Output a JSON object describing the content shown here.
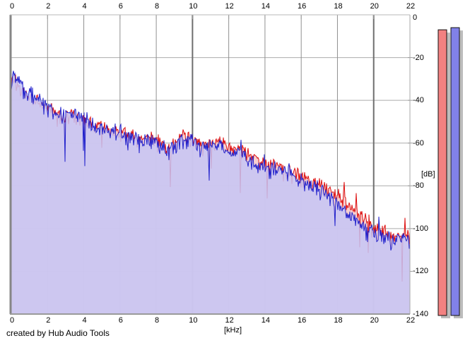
{
  "credit": "created by Hub Audio Tools",
  "colors": {
    "background": "#ffffff",
    "plot_background": "#ffffff",
    "grid_vertical": "#909090",
    "grid_vertical_major": "#6e6e6e",
    "grid_horizontal": "#ababab",
    "border_left": "#868686",
    "border_top": "#b8b8b8",
    "border_right": "#a8a8a8",
    "border_bottom": "#9a9a9a",
    "tick_color": "#9a9a9a",
    "shadow": "#bcbcbc",
    "text": "#000000"
  },
  "chart_data": {
    "type": "line",
    "title": "",
    "xlabel": "[kHz]",
    "ylabel": "[dB]",
    "xlim": [
      0,
      22
    ],
    "ylim": [
      -140,
      0
    ],
    "x_ticks": [
      0,
      2,
      4,
      6,
      8,
      10,
      12,
      14,
      16,
      18,
      20,
      22
    ],
    "x_ticks_major": [
      10,
      20
    ],
    "y_ticks": [
      0,
      -20,
      -40,
      -60,
      -80,
      -100,
      -120,
      -140
    ],
    "grid": true,
    "legend": "none",
    "series": [
      {
        "name": "spectrum-red",
        "stroke": "#dd0f0f",
        "fill": "rgba(246,200,200,0.85)",
        "seed": 101,
        "noise_db": 9,
        "spike_base_prob": 0.006,
        "spike_hf_prob": 0.024,
        "spike_depth_db": 17,
        "envelope": [
          [
            0,
            -35
          ],
          [
            0.1,
            -27
          ],
          [
            0.3,
            -32
          ],
          [
            0.5,
            -34
          ],
          [
            1,
            -38
          ],
          [
            1.5,
            -41
          ],
          [
            2,
            -43
          ],
          [
            2.5,
            -46
          ],
          [
            3,
            -47
          ],
          [
            3.5,
            -46
          ],
          [
            4,
            -48
          ],
          [
            4.5,
            -51
          ],
          [
            5,
            -52
          ],
          [
            5.5,
            -54
          ],
          [
            6,
            -55
          ],
          [
            6.5,
            -56
          ],
          [
            7,
            -58
          ],
          [
            7.5,
            -58
          ],
          [
            8,
            -58
          ],
          [
            8.5,
            -61
          ],
          [
            9,
            -61
          ],
          [
            9.5,
            -56
          ],
          [
            10,
            -58
          ],
          [
            10.5,
            -60
          ],
          [
            11,
            -61
          ],
          [
            11.5,
            -59
          ],
          [
            12,
            -63
          ],
          [
            12.5,
            -62
          ],
          [
            13,
            -65
          ],
          [
            13.5,
            -68
          ],
          [
            14,
            -69
          ],
          [
            14.5,
            -69
          ],
          [
            15,
            -72
          ],
          [
            15.5,
            -74
          ],
          [
            16,
            -76
          ],
          [
            16.5,
            -78
          ],
          [
            17,
            -80
          ],
          [
            17.5,
            -82
          ],
          [
            18,
            -84
          ],
          [
            18.5,
            -88
          ],
          [
            19,
            -91
          ],
          [
            19.5,
            -95
          ],
          [
            20,
            -98
          ],
          [
            20.5,
            -101
          ],
          [
            21,
            -103
          ],
          [
            21.5,
            -104
          ],
          [
            22,
            -103
          ]
        ]
      },
      {
        "name": "spectrum-blue",
        "stroke": "#2222cc",
        "fill": "rgba(197,197,246,0.85)",
        "seed": 202,
        "noise_db": 9,
        "spike_base_prob": 0.006,
        "spike_hf_prob": 0.028,
        "spike_depth_db": 20,
        "envelope": [
          [
            0,
            -34
          ],
          [
            0.1,
            -26
          ],
          [
            0.3,
            -31
          ],
          [
            0.5,
            -33
          ],
          [
            1,
            -37
          ],
          [
            1.5,
            -40
          ],
          [
            2,
            -42
          ],
          [
            2.5,
            -46
          ],
          [
            3,
            -47
          ],
          [
            3.5,
            -45
          ],
          [
            4,
            -48
          ],
          [
            4.5,
            -51
          ],
          [
            5,
            -53
          ],
          [
            5.5,
            -54
          ],
          [
            6,
            -55
          ],
          [
            6.5,
            -57
          ],
          [
            7,
            -58
          ],
          [
            7.5,
            -59
          ],
          [
            8,
            -59
          ],
          [
            8.5,
            -62
          ],
          [
            9,
            -62
          ],
          [
            9.5,
            -57
          ],
          [
            10,
            -58
          ],
          [
            10.5,
            -61
          ],
          [
            11,
            -62
          ],
          [
            11.5,
            -60
          ],
          [
            12,
            -64
          ],
          [
            12.5,
            -63
          ],
          [
            13,
            -66
          ],
          [
            13.5,
            -69
          ],
          [
            14,
            -71
          ],
          [
            14.5,
            -70
          ],
          [
            15,
            -73
          ],
          [
            15.5,
            -75
          ],
          [
            16,
            -77
          ],
          [
            16.5,
            -79
          ],
          [
            17,
            -81
          ],
          [
            17.5,
            -84
          ],
          [
            18,
            -88
          ],
          [
            18.5,
            -93
          ],
          [
            19,
            -96
          ],
          [
            19.5,
            -99
          ],
          [
            20,
            -101
          ],
          [
            20.5,
            -103
          ],
          [
            21,
            -104
          ],
          [
            21.5,
            -105
          ],
          [
            22,
            -104
          ]
        ]
      }
    ]
  },
  "level_meters": {
    "red": {
      "name": "level-bar-red",
      "color": "#f28181",
      "border": "#111111",
      "top_db": -7
    },
    "blue": {
      "name": "level-bar-blue",
      "color": "#8181e8",
      "border": "#111111",
      "top_db": -6
    }
  }
}
